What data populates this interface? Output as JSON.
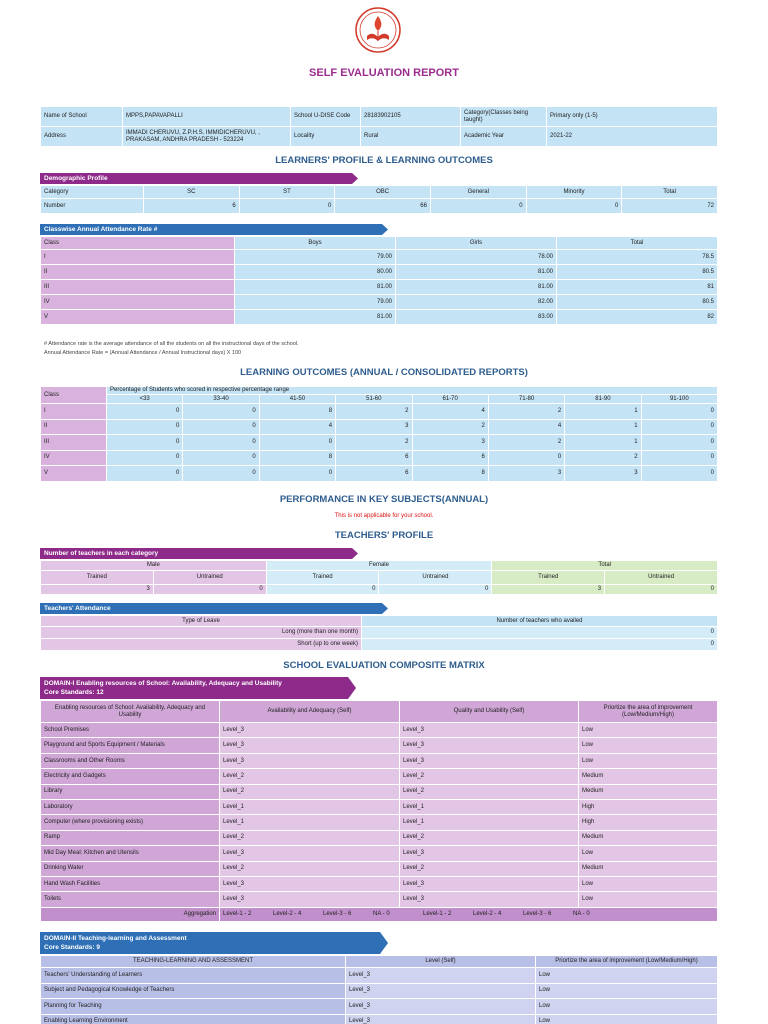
{
  "title": "SELF EVALUATION REPORT",
  "school_info": {
    "name_label": "Name of School",
    "name_value": "MPPS,PAPAVAPALLI",
    "udise_label": "School U-DISE Code",
    "udise_value": "28183902105",
    "category_label": "Category(Classes being taught)",
    "category_value": "Primary only (1-5)",
    "address_label": "Address",
    "address_value": "IMMADI CHERUVU, Z.P.H.S. IMMIDICHERUVU, , PRAKASAM, ANDHRA PRADESH - 523224",
    "locality_label": "Locality",
    "locality_value": "Rural",
    "year_label": "Academic Year",
    "year_value": "2021-22"
  },
  "learners_title": "LEARNERS' PROFILE & LEARNING OUTCOMES",
  "demographic": {
    "header": "Demographic Profile",
    "columns": [
      "Category",
      "SC",
      "ST",
      "OBC",
      "General",
      "Minority",
      "Total"
    ],
    "row_label": "Number",
    "values": [
      "6",
      "0",
      "66",
      "0",
      "0",
      "72"
    ]
  },
  "attendance_rate": {
    "header": "Classwise Annual Attendance Rate #",
    "columns": [
      "Class",
      "Boys",
      "Girls",
      "Total"
    ],
    "rows": [
      [
        "I",
        "79.00",
        "78.00",
        "78.5"
      ],
      [
        "II",
        "80.00",
        "81.00",
        "80.5"
      ],
      [
        "III",
        "81.00",
        "81.00",
        "81"
      ],
      [
        "IV",
        "79.00",
        "82.00",
        "80.5"
      ],
      [
        "V",
        "81.00",
        "83.00",
        "82"
      ]
    ],
    "note1": "# Attendance rate is the average attendance of all the students on all the instructional days of the school.",
    "note2": "Annual Attendance Rate = (Annual Attendance / Annual Instructional days) X 100"
  },
  "outcomes": {
    "title": "LEARNING OUTCOMES (ANNUAL / CONSOLIDATED REPORTS)",
    "class_label": "Class",
    "caption": "Percentage of Students who scored in respective percentage range",
    "ranges": [
      "<33",
      "33-40",
      "41-50",
      "51-60",
      "61-70",
      "71-80",
      "81-90",
      "91-100"
    ],
    "rows": [
      [
        "I",
        "0",
        "0",
        "8",
        "2",
        "4",
        "2",
        "1",
        "0"
      ],
      [
        "II",
        "0",
        "0",
        "4",
        "3",
        "2",
        "4",
        "1",
        "0"
      ],
      [
        "III",
        "0",
        "0",
        "0",
        "2",
        "3",
        "2",
        "1",
        "0"
      ],
      [
        "IV",
        "0",
        "0",
        "8",
        "6",
        "6",
        "0",
        "2",
        "0"
      ],
      [
        "V",
        "0",
        "0",
        "0",
        "6",
        "8",
        "3",
        "3",
        "0"
      ]
    ]
  },
  "performance": {
    "title": "PERFORMANCE IN KEY SUBJECTS(ANNUAL)",
    "note": "This is not applicable for your school."
  },
  "teachers": {
    "title": "TEACHERS' PROFILE",
    "count_header": "Number of teachers in each category",
    "groups": [
      "Male",
      "Female",
      "Total"
    ],
    "sub": [
      "Trained",
      "Untrained"
    ],
    "values": [
      "3",
      "0",
      "0",
      "0",
      "3",
      "0"
    ],
    "attendance_header": "Teachers' Attendance",
    "leave_col": "Type of Leave",
    "avail_col": "Number of teachers who availed",
    "leave_rows": [
      [
        "Long (more than one month)",
        "0"
      ],
      [
        "Short (up to one week)",
        "0"
      ]
    ]
  },
  "matrix": {
    "title": "SCHOOL EVALUATION COMPOSITE MATRIX",
    "domain1": {
      "header1": "DOMAIN-I Enabling resources of School: Availability, Adequacy and Usability",
      "header2": "Core Standards: 12",
      "columns": [
        "Enabling resources of School: Availability, Adequacy and Usability",
        "Availability and Adequacy (Self)",
        "Quality and Usability (Self)",
        "Priortize the area of improvement (Low/Medium/High)"
      ],
      "rows": [
        [
          "School Premises",
          "Level_3",
          "Level_3",
          "Low"
        ],
        [
          "Playground and Sports Equipment / Materials",
          "Level_3",
          "Level_3",
          "Low"
        ],
        [
          "Classrooms and Other Rooms",
          "Level_3",
          "Level_3",
          "Low"
        ],
        [
          "Electricity and Gadgets",
          "Level_2",
          "Level_2",
          "Medium"
        ],
        [
          "Library",
          "Level_2",
          "Level_2",
          "Medium"
        ],
        [
          "Laboratory",
          "Level_1",
          "Level_1",
          "High"
        ],
        [
          "Computer (where provisioning exists)",
          "Level_1",
          "Level_1",
          "High"
        ],
        [
          "Ramp",
          "Level_2",
          "Level_2",
          "Medium"
        ],
        [
          "Mid Day Meal: Kitchen and Utensils",
          "Level_3",
          "Level_3",
          "Low"
        ],
        [
          "Drinking Water",
          "Level_2",
          "Level_2",
          "Medium"
        ],
        [
          "Hand Wash Facilities",
          "Level_3",
          "Level_3",
          "Low"
        ],
        [
          "Toilets",
          "Level_3",
          "Level_3",
          "Low"
        ]
      ],
      "aggregation_label": "Aggregation",
      "aggregation": [
        "Level-1 - 2",
        "Level-2 - 4",
        "Level-3 - 6",
        "NA - 0",
        "Level-1 - 2",
        "Level-2 - 4",
        "Level-3 - 6",
        "NA - 0"
      ]
    },
    "domain2": {
      "header1": "DOMAIN-II Teaching-learning and Assessment",
      "header2": "Core Standards: 9",
      "columns": [
        "TEACHING-LEARNING AND ASSESSMENT",
        "Level (Self)",
        "Priortize the area of improvement (Low/Medium/High)"
      ],
      "rows": [
        [
          "Teachers' Understanding of Learners",
          "Level_3",
          "Low"
        ],
        [
          "Subject and Pedagogical Knowledge of Teachers",
          "Level_3",
          "Low"
        ],
        [
          "Planning for Teaching",
          "Level_3",
          "Low"
        ],
        [
          "Enabling Learning Environment",
          "Level_3",
          "Low"
        ]
      ]
    }
  }
}
